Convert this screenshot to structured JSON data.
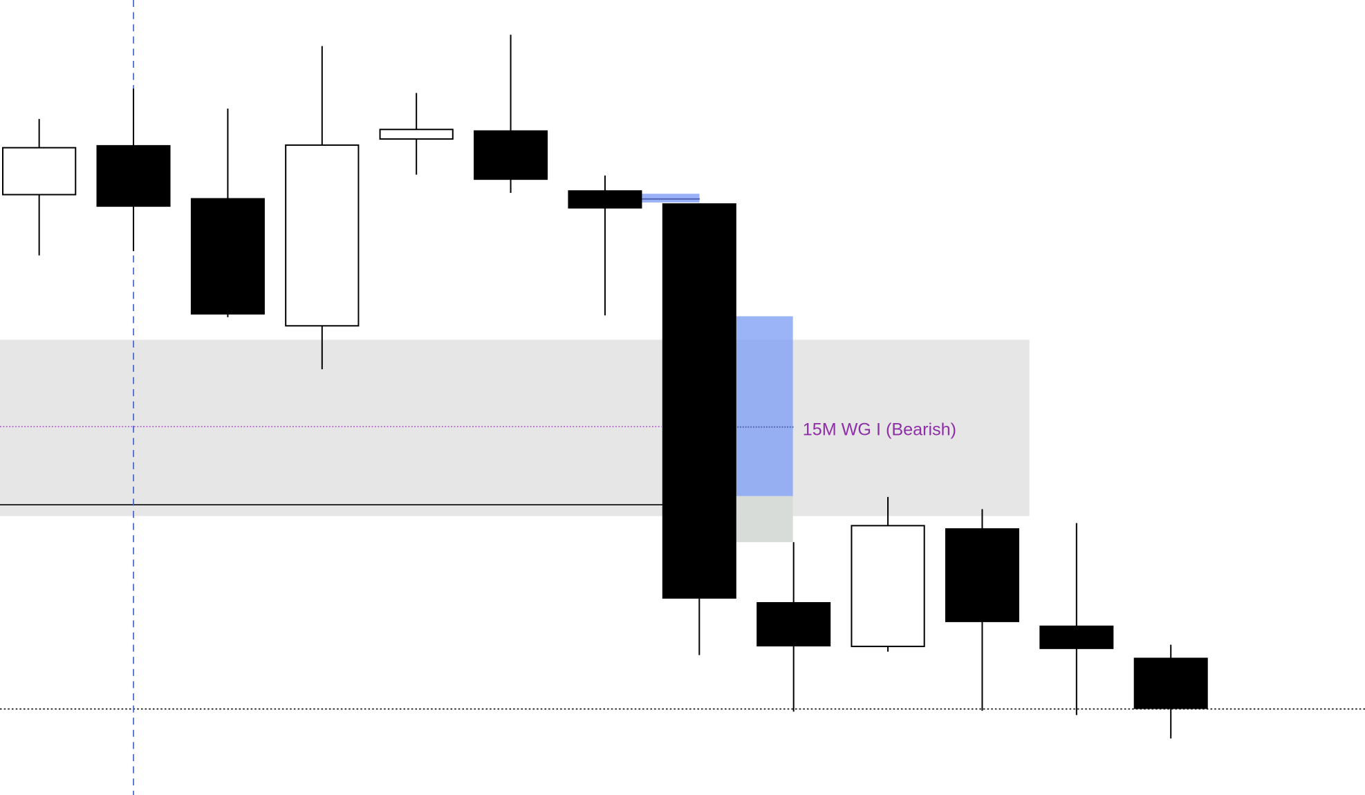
{
  "chart_data": {
    "type": "candlestick",
    "title": "",
    "xlabel": "",
    "ylabel": "",
    "grid": false,
    "ylim": [
      -1.5,
      90
    ],
    "candles": [
      {
        "open": 67.6,
        "close": 73.0,
        "high": 76.3,
        "low": 60.6
      },
      {
        "open": 73.3,
        "close": 66.2,
        "high": 79.8,
        "low": 61.1
      },
      {
        "open": 67.2,
        "close": 53.8,
        "high": 77.5,
        "low": 53.5
      },
      {
        "open": 52.5,
        "close": 73.3,
        "high": 84.7,
        "low": 47.5
      },
      {
        "open": 74.0,
        "close": 75.1,
        "high": 79.3,
        "low": 69.9
      },
      {
        "open": 75.0,
        "close": 69.3,
        "high": 86.0,
        "low": 67.8
      },
      {
        "open": 68.1,
        "close": 66.0,
        "high": 69.8,
        "low": 53.7
      },
      {
        "open": 66.6,
        "close": 21.1,
        "high": 66.6,
        "low": 14.6
      },
      {
        "open": 20.7,
        "close": 15.6,
        "high": 27.6,
        "low": 8.1
      },
      {
        "open": 15.6,
        "close": 29.5,
        "high": 32.8,
        "low": 15.0
      },
      {
        "open": 29.2,
        "close": 18.4,
        "high": 31.4,
        "low": 8.2
      },
      {
        "open": 18.0,
        "close": 15.3,
        "high": 29.8,
        "low": 7.7
      },
      {
        "open": 14.3,
        "close": 8.4,
        "high": 15.8,
        "low": 5.0
      }
    ],
    "colors": {
      "up_fill": "#ffffff",
      "down_fill": "#000000",
      "outline": "#000000"
    },
    "zones": {
      "grey_zone": {
        "top": 50.9,
        "bottom": 30.6,
        "from_candle": 0,
        "to_candle": 10.5,
        "color": "#e6e6e6"
      },
      "fvg": {
        "top": 53.6,
        "bottom": 32.9,
        "candle": 8,
        "color": "#7f9ef5"
      },
      "fvg_lower": {
        "top": 32.9,
        "bottom": 27.6,
        "candle": 8,
        "color": "#d8dcd8"
      },
      "small_gap": {
        "top": 67.7,
        "bottom": 66.7,
        "mid": 67.1,
        "candle": 7,
        "color": "#9ab0f8"
      }
    },
    "lines": {
      "midline": {
        "level": 40.9,
        "color": "#9b30c0",
        "style": "dotted"
      },
      "support": {
        "level": 31.9,
        "color": "#000000",
        "style": "solid"
      },
      "low_level": {
        "level": 8.4,
        "color": "#000000",
        "style": "dotted"
      },
      "vertical_marker": {
        "candle": 1,
        "color": "#3a5fd8",
        "style": "dashed"
      }
    },
    "annotations": [
      {
        "text": "15M WG I (Bearish)",
        "level": 40.6,
        "color": "#8e2fa8"
      }
    ]
  }
}
